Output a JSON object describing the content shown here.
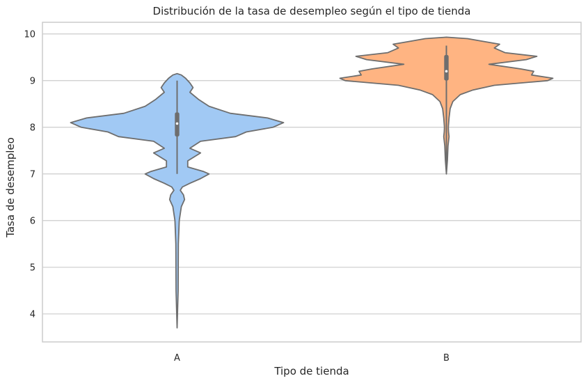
{
  "chart_data": {
    "type": "violin",
    "title": "Distribución de la tasa de desempleo según el tipo de tienda",
    "xlabel": "Tipo de tienda",
    "ylabel": "Tasa de desempleo",
    "categories": [
      "A",
      "B"
    ],
    "ylim": [
      3.4,
      10.25
    ],
    "yticks": [
      4,
      5,
      6,
      7,
      8,
      9,
      10
    ],
    "grid": "horizontal",
    "colors": {
      "A": "#a1c9f4",
      "B": "#ffb482",
      "outline": "#6e6e6e",
      "grid": "#cccccc",
      "axes_edge": "#cccccc"
    },
    "series": [
      {
        "category": "A",
        "min": 3.7,
        "q1": 7.8,
        "median": 8.08,
        "q3": 8.32,
        "max": 9.15,
        "whisker_low": 7.0,
        "whisker_high": 9.0,
        "density_profile": [
          [
            3.7,
            0.0
          ],
          [
            4.5,
            0.01
          ],
          [
            5.5,
            0.012
          ],
          [
            6.0,
            0.02
          ],
          [
            6.3,
            0.04
          ],
          [
            6.45,
            0.07
          ],
          [
            6.55,
            0.06
          ],
          [
            6.65,
            0.03
          ],
          [
            6.72,
            0.05
          ],
          [
            6.8,
            0.12
          ],
          [
            6.9,
            0.22
          ],
          [
            7.0,
            0.3
          ],
          [
            7.05,
            0.25
          ],
          [
            7.15,
            0.1
          ],
          [
            7.28,
            0.1
          ],
          [
            7.45,
            0.22
          ],
          [
            7.55,
            0.12
          ],
          [
            7.7,
            0.22
          ],
          [
            7.8,
            0.55
          ],
          [
            7.9,
            0.65
          ],
          [
            8.0,
            0.9
          ],
          [
            8.1,
            1.0
          ],
          [
            8.2,
            0.85
          ],
          [
            8.3,
            0.5
          ],
          [
            8.45,
            0.3
          ],
          [
            8.6,
            0.2
          ],
          [
            8.75,
            0.12
          ],
          [
            8.85,
            0.15
          ],
          [
            8.95,
            0.12
          ],
          [
            9.05,
            0.08
          ],
          [
            9.12,
            0.04
          ],
          [
            9.15,
            0.0
          ]
        ]
      },
      {
        "category": "B",
        "min": 7.0,
        "q1": 9.0,
        "median": 9.2,
        "q3": 9.55,
        "max": 9.93,
        "whisker_low": 7.0,
        "whisker_high": 9.75,
        "density_profile": [
          [
            7.0,
            0.0
          ],
          [
            7.3,
            0.01
          ],
          [
            7.6,
            0.015
          ],
          [
            7.8,
            0.025
          ],
          [
            7.9,
            0.02
          ],
          [
            8.0,
            0.018
          ],
          [
            8.2,
            0.025
          ],
          [
            8.4,
            0.035
          ],
          [
            8.55,
            0.06
          ],
          [
            8.7,
            0.13
          ],
          [
            8.8,
            0.25
          ],
          [
            8.9,
            0.45
          ],
          [
            9.0,
            0.95
          ],
          [
            9.05,
            1.0
          ],
          [
            9.12,
            0.8
          ],
          [
            9.2,
            0.82
          ],
          [
            9.25,
            0.7
          ],
          [
            9.35,
            0.4
          ],
          [
            9.45,
            0.75
          ],
          [
            9.52,
            0.85
          ],
          [
            9.6,
            0.55
          ],
          [
            9.7,
            0.45
          ],
          [
            9.78,
            0.5
          ],
          [
            9.85,
            0.32
          ],
          [
            9.9,
            0.2
          ],
          [
            9.93,
            0.0
          ]
        ]
      }
    ]
  }
}
